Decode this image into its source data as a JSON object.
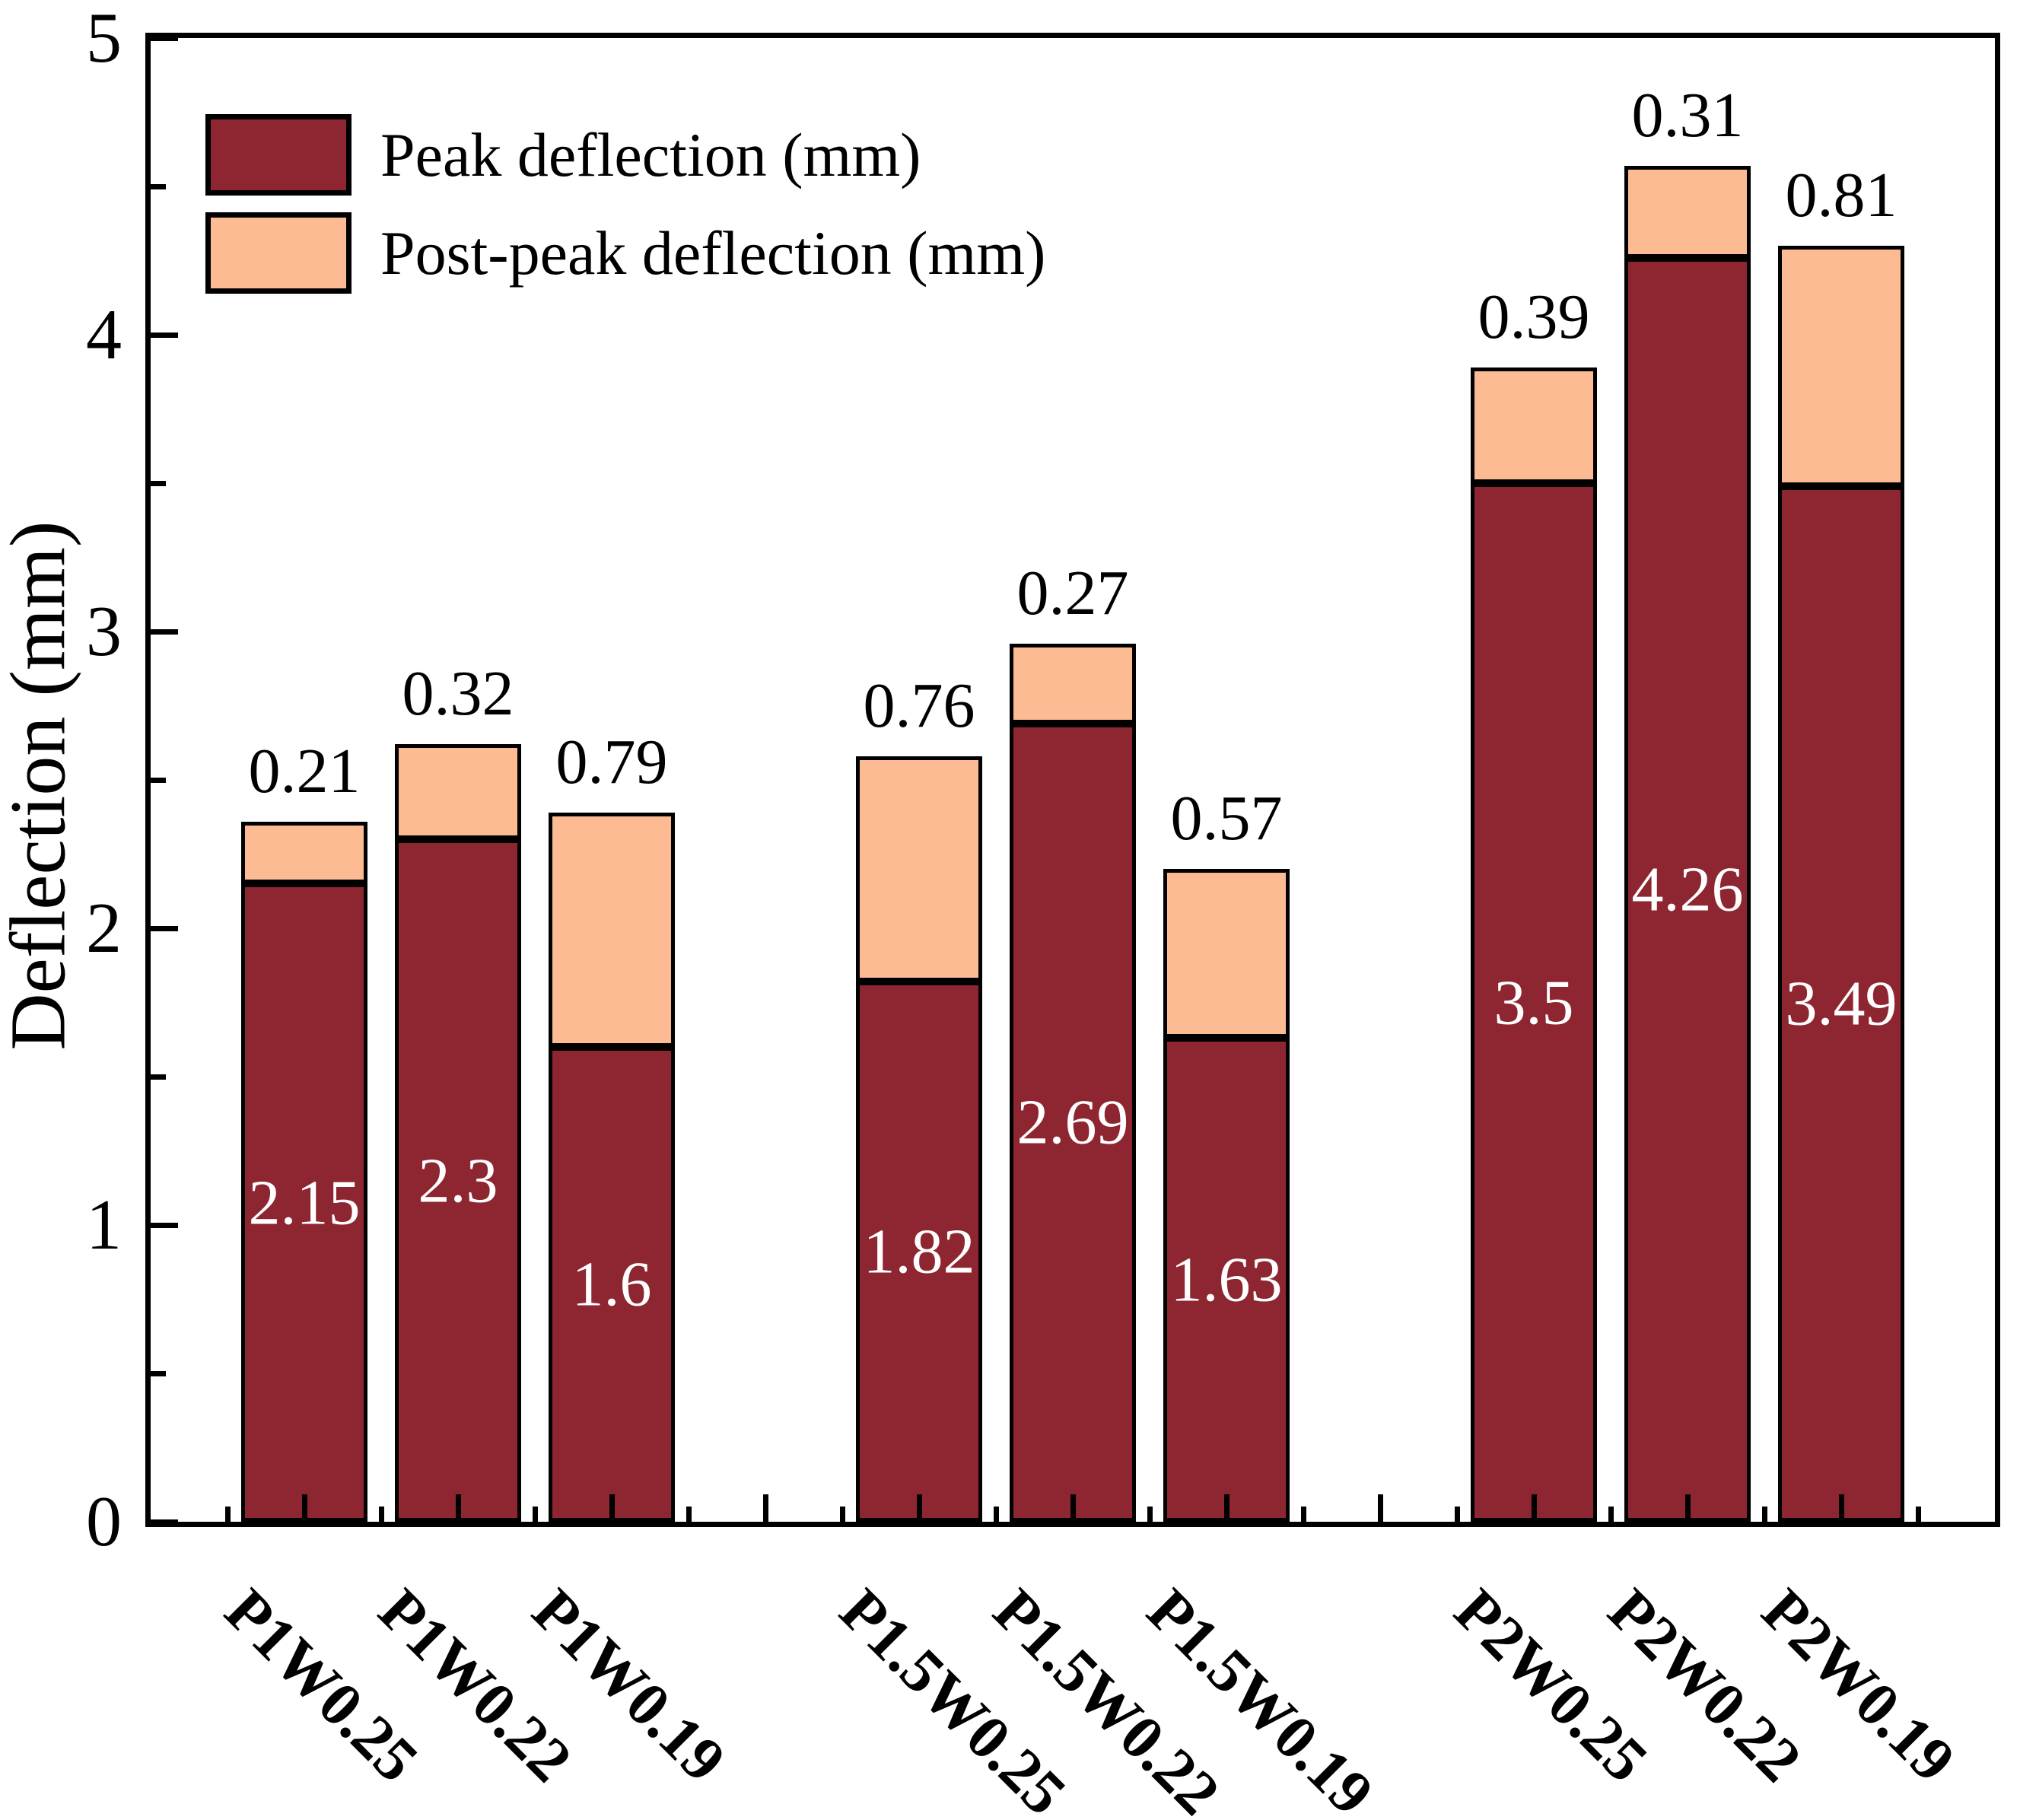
{
  "chart_data": {
    "type": "bar",
    "stacked": true,
    "title": "",
    "xlabel": "",
    "ylabel": "Deflection (mm)",
    "ylim": [
      0,
      5
    ],
    "y_major_ticks": [
      0,
      1,
      2,
      3,
      4,
      5
    ],
    "y_minor_step": 0.5,
    "grid": false,
    "legend_position": "top-left-inside",
    "categories": [
      "P1W0.25",
      "P1W0.22",
      "P1W0.19",
      "P1.5W0.25",
      "P1.5W0.22",
      "P1.5W0.19",
      "P2W0.25",
      "P2W0.22",
      "P2W0.19"
    ],
    "slot_indices": [
      1,
      2,
      3,
      5,
      6,
      7,
      9,
      10,
      11
    ],
    "slots_total": 12,
    "series": [
      {
        "name": "Peak deflection (mm)",
        "color": "#8E2631",
        "label_color": "#FFFFFF",
        "values": [
          2.15,
          2.3,
          1.6,
          1.82,
          2.69,
          1.63,
          3.5,
          4.26,
          3.49
        ]
      },
      {
        "name": "Post-peak deflection (mm)",
        "color": "#FCBB92",
        "label_color": "#000000",
        "values": [
          0.21,
          0.32,
          0.79,
          0.76,
          0.27,
          0.57,
          0.39,
          0.31,
          0.81
        ]
      }
    ],
    "bar_totals": [
      2.36,
      2.62,
      2.39,
      2.58,
      2.96,
      2.2,
      3.89,
      4.57,
      4.3
    ]
  },
  "colors": {
    "peak": "#8E2631",
    "post_peak": "#FCBB92",
    "axis": "#000000",
    "background": "#FFFFFF",
    "inner_label": "#FFFFFF",
    "outer_label": "#000000"
  }
}
